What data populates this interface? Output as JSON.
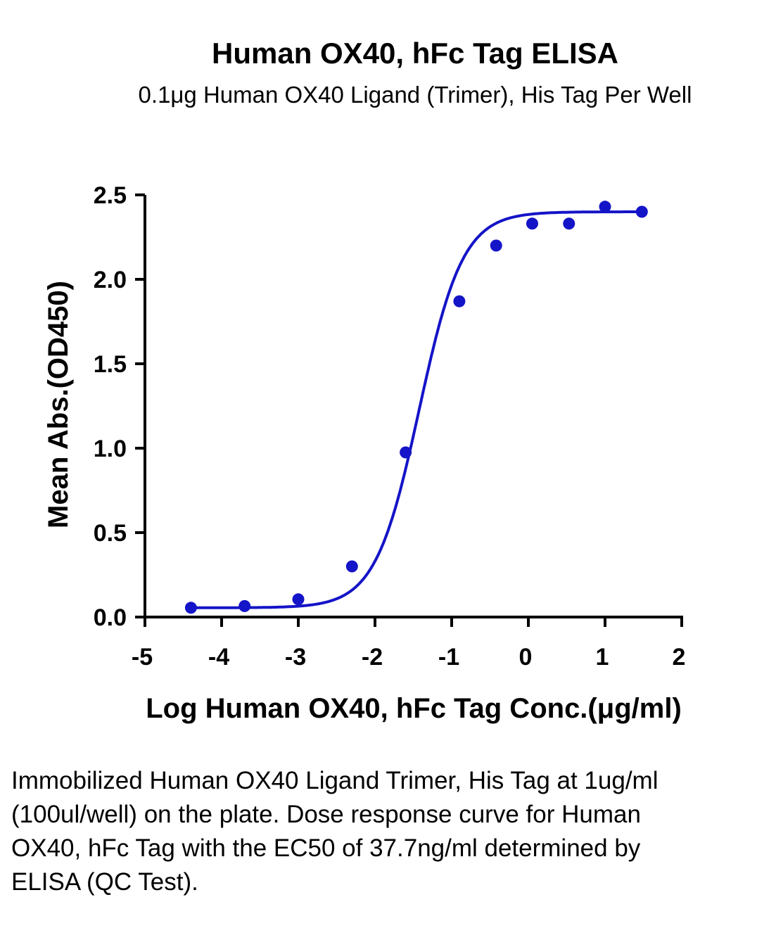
{
  "chart_data": {
    "type": "scatter",
    "title": "Human OX40, hFc Tag ELISA",
    "subtitle": "0.1μg Human OX40 Ligand (Trimer), His Tag Per Well",
    "xlabel": "Log Human OX40, hFc Tag Conc.(μg/ml)",
    "ylabel": "Mean Abs.(OD450)",
    "xlim": [
      -5,
      2
    ],
    "ylim": [
      0,
      2.5
    ],
    "x_ticks": [
      "-5",
      "-4",
      "-3",
      "-2",
      "-1",
      "0",
      "1",
      "2"
    ],
    "y_ticks": [
      "0.0",
      "0.5",
      "1.0",
      "1.5",
      "2.0",
      "2.5"
    ],
    "grid": false,
    "legend": "none",
    "series": [
      {
        "x": [
          -4.4,
          -3.7,
          -3.0,
          -2.3,
          -1.6,
          -0.9,
          -0.42,
          0.05,
          0.53,
          1.0,
          1.48
        ],
        "y": [
          0.055,
          0.065,
          0.105,
          0.3,
          0.975,
          1.87,
          2.2,
          2.33,
          2.33,
          2.43,
          2.4
        ],
        "color": "#1414c8"
      }
    ],
    "fit_curve": {
      "type": "4PL",
      "bottom": 0.055,
      "top": 2.4,
      "log_ec50": -1.424,
      "hill_slope": 1.52,
      "color": "#1414c8"
    }
  },
  "caption": "Immobilized Human OX40 Ligand Trimer, His Tag at 1ug/ml (100ul/well) on the plate. Dose response curve for Human OX40, hFc Tag with the EC50 of 37.7ng/ml determined by ELISA (QC Test)."
}
